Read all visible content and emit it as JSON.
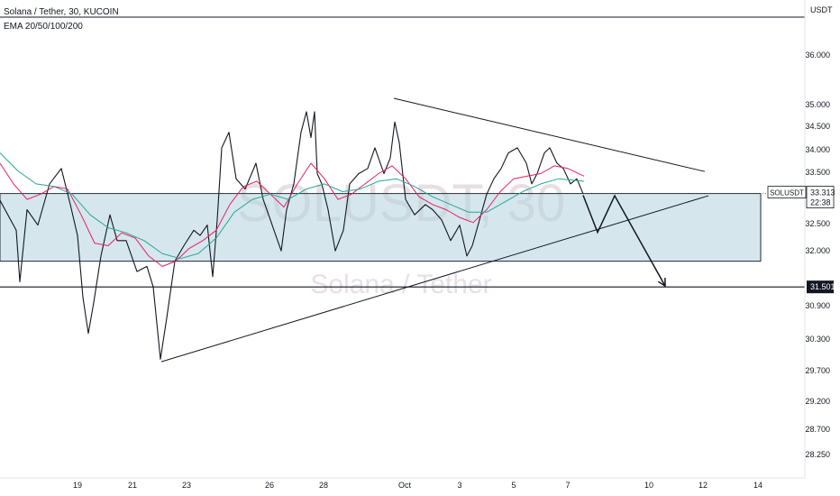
{
  "header": {
    "symbol_line": "Solana / Tether, 30, KUCOIN",
    "indicator_line": "EMA 20/50/100/200"
  },
  "watermark": {
    "ticker": "SOLUSDT, 30",
    "name": "Solana / Tether"
  },
  "chart_data": {
    "type": "line",
    "title": "Solana / Tether, 30, KUCOIN",
    "currency": "USDT",
    "y_ticks": [
      "36.000",
      "35.000",
      "34.500",
      "34.000",
      "33.500",
      "32.500",
      "32.000",
      "30.900",
      "30.300",
      "29.700",
      "29.200",
      "28.700",
      "28.250"
    ],
    "x_ticks": [
      "19",
      "21",
      "23",
      "26",
      "28",
      "Oct",
      "3",
      "5",
      "7",
      "10",
      "12",
      "14"
    ],
    "price_axis_labels": {
      "last": {
        "symbol": "SOLUSDT",
        "value": "33.313",
        "countdown": "22:38"
      },
      "level": {
        "value": "31.501"
      }
    },
    "series": [
      {
        "name": "SOLUSDT",
        "color": "#131722",
        "points": [
          [
            0,
            33.18
          ],
          [
            18,
            32.6
          ],
          [
            22,
            31.6
          ],
          [
            30,
            33.0
          ],
          [
            42,
            32.7
          ],
          [
            55,
            33.5
          ],
          [
            68,
            33.8
          ],
          [
            78,
            33.1
          ],
          [
            86,
            32.5
          ],
          [
            92,
            31.3
          ],
          [
            98,
            30.6
          ],
          [
            104,
            31.2
          ],
          [
            112,
            32.1
          ],
          [
            122,
            32.9
          ],
          [
            130,
            32.4
          ],
          [
            140,
            32.4
          ],
          [
            152,
            31.8
          ],
          [
            163,
            31.9
          ],
          [
            170,
            31.5
          ],
          [
            178,
            30.1
          ],
          [
            185,
            30.9
          ],
          [
            194,
            32.0
          ],
          [
            204,
            32.3
          ],
          [
            215,
            32.6
          ],
          [
            222,
            32.5
          ],
          [
            230,
            32.7
          ],
          [
            236,
            31.7
          ],
          [
            241,
            32.8
          ],
          [
            246,
            34.2
          ],
          [
            254,
            34.5
          ],
          [
            262,
            33.6
          ],
          [
            272,
            33.4
          ],
          [
            284,
            33.9
          ],
          [
            292,
            33.2
          ],
          [
            302,
            32.7
          ],
          [
            312,
            32.2
          ],
          [
            318,
            33.0
          ],
          [
            326,
            33.5
          ],
          [
            334,
            34.5
          ],
          [
            340,
            34.9
          ],
          [
            345,
            34.4
          ],
          [
            349,
            34.9
          ],
          [
            352,
            33.7
          ],
          [
            357,
            33.5
          ],
          [
            364,
            33.0
          ],
          [
            372,
            32.2
          ],
          [
            381,
            32.6
          ],
          [
            388,
            33.5
          ],
          [
            398,
            33.7
          ],
          [
            408,
            33.8
          ],
          [
            416,
            34.2
          ],
          [
            426,
            33.7
          ],
          [
            433,
            34.0
          ],
          [
            438,
            34.7
          ],
          [
            443,
            34.3
          ],
          [
            450,
            33.2
          ],
          [
            460,
            32.9
          ],
          [
            472,
            33.1
          ],
          [
            480,
            33.0
          ],
          [
            490,
            32.8
          ],
          [
            500,
            32.4
          ],
          [
            510,
            32.7
          ],
          [
            518,
            32.1
          ],
          [
            524,
            32.3
          ],
          [
            532,
            32.8
          ],
          [
            540,
            33.3
          ],
          [
            548,
            33.6
          ],
          [
            556,
            33.8
          ],
          [
            564,
            34.1
          ],
          [
            574,
            34.2
          ],
          [
            584,
            33.9
          ],
          [
            590,
            33.5
          ],
          [
            596,
            33.7
          ],
          [
            604,
            34.1
          ],
          [
            610,
            34.2
          ],
          [
            618,
            33.9
          ],
          [
            625,
            33.8
          ],
          [
            633,
            33.5
          ],
          [
            640,
            33.6
          ],
          [
            647,
            33.31
          ]
        ]
      },
      {
        "name": "EMA 20",
        "color": "#e91e63",
        "points": [
          [
            0,
            33.9
          ],
          [
            15,
            33.5
          ],
          [
            30,
            33.2
          ],
          [
            45,
            33.3
          ],
          [
            60,
            33.45
          ],
          [
            75,
            33.4
          ],
          [
            90,
            32.9
          ],
          [
            105,
            32.35
          ],
          [
            120,
            32.3
          ],
          [
            135,
            32.55
          ],
          [
            150,
            32.45
          ],
          [
            165,
            32.1
          ],
          [
            180,
            31.9
          ],
          [
            195,
            32.0
          ],
          [
            210,
            32.25
          ],
          [
            225,
            32.4
          ],
          [
            240,
            32.6
          ],
          [
            255,
            33.1
          ],
          [
            270,
            33.45
          ],
          [
            285,
            33.55
          ],
          [
            300,
            33.3
          ],
          [
            315,
            33.05
          ],
          [
            330,
            33.5
          ],
          [
            345,
            33.9
          ],
          [
            360,
            33.6
          ],
          [
            375,
            33.2
          ],
          [
            390,
            33.3
          ],
          [
            405,
            33.5
          ],
          [
            420,
            33.7
          ],
          [
            435,
            33.85
          ],
          [
            450,
            33.6
          ],
          [
            465,
            33.25
          ],
          [
            480,
            33.1
          ],
          [
            495,
            33.0
          ],
          [
            510,
            32.85
          ],
          [
            525,
            32.75
          ],
          [
            540,
            33.0
          ],
          [
            555,
            33.35
          ],
          [
            570,
            33.6
          ],
          [
            585,
            33.65
          ],
          [
            600,
            33.7
          ],
          [
            615,
            33.85
          ],
          [
            630,
            33.8
          ],
          [
            648,
            33.65
          ]
        ]
      },
      {
        "name": "EMA 50",
        "color": "#26a69a",
        "points": [
          [
            0,
            34.1
          ],
          [
            20,
            33.75
          ],
          [
            40,
            33.5
          ],
          [
            60,
            33.45
          ],
          [
            80,
            33.3
          ],
          [
            100,
            32.9
          ],
          [
            120,
            32.65
          ],
          [
            140,
            32.55
          ],
          [
            160,
            32.4
          ],
          [
            180,
            32.15
          ],
          [
            200,
            32.05
          ],
          [
            220,
            32.15
          ],
          [
            240,
            32.45
          ],
          [
            260,
            32.95
          ],
          [
            280,
            33.2
          ],
          [
            300,
            33.3
          ],
          [
            320,
            33.2
          ],
          [
            340,
            33.4
          ],
          [
            360,
            33.5
          ],
          [
            380,
            33.35
          ],
          [
            400,
            33.4
          ],
          [
            420,
            33.55
          ],
          [
            440,
            33.6
          ],
          [
            460,
            33.45
          ],
          [
            480,
            33.25
          ],
          [
            500,
            33.1
          ],
          [
            520,
            32.95
          ],
          [
            540,
            32.95
          ],
          [
            560,
            33.15
          ],
          [
            580,
            33.35
          ],
          [
            600,
            33.5
          ],
          [
            620,
            33.6
          ],
          [
            648,
            33.55
          ]
        ]
      }
    ],
    "annotations": [
      {
        "type": "trendline",
        "name": "descending-resistance",
        "points": [
          [
            437,
            35.16
          ],
          [
            782,
            33.74
          ]
        ]
      },
      {
        "type": "trendline",
        "name": "ascending-support",
        "points": [
          [
            179,
            30.05
          ],
          [
            786,
            33.27
          ]
        ]
      },
      {
        "type": "horizontal-line",
        "name": "support-level",
        "value": 31.501
      },
      {
        "type": "rectangle",
        "name": "range-zone",
        "x_from": 0,
        "x_to": 844,
        "y_from": 32.0,
        "y_to": 33.313
      },
      {
        "type": "path-arrow",
        "name": "projected-path",
        "points": [
          [
            647,
            33.28
          ],
          [
            663,
            32.56
          ],
          [
            682,
            33.27
          ],
          [
            738,
            31.52
          ]
        ]
      }
    ],
    "grid": false,
    "legend": "top-left"
  }
}
